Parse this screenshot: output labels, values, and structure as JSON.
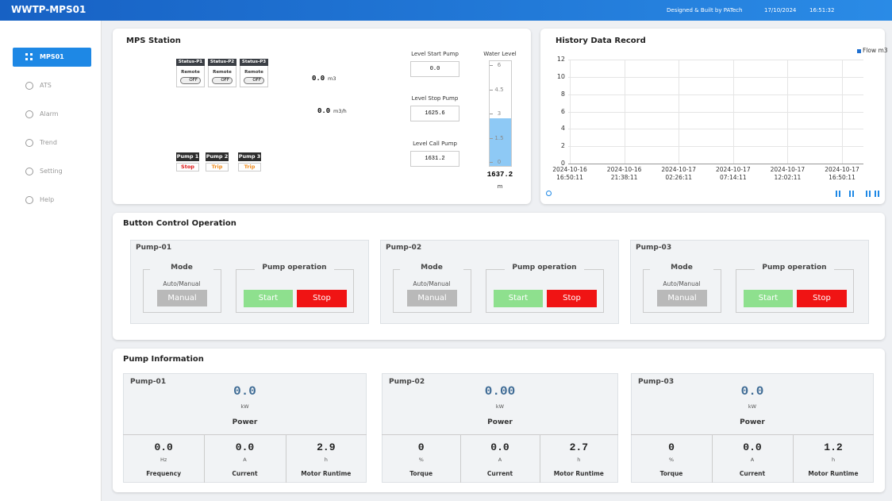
{
  "header": {
    "title": "WWTP-MPS01",
    "credit": "Designed & Built by PATech",
    "date": "17/10/2024",
    "time": "16:51:32"
  },
  "sidebar": {
    "items": [
      "MPS01",
      "ATS",
      "Alarm",
      "Trend",
      "Setting",
      "Help"
    ]
  },
  "mps_station": {
    "title": "MPS Station",
    "pumps": [
      {
        "status_title": "Status-P1",
        "mode": "Remote",
        "switch": "OFF",
        "label": "Pump 1",
        "state": "Stop"
      },
      {
        "status_title": "Status-P2",
        "mode": "Remote",
        "switch": "OFF",
        "label": "Pump 2",
        "state": "Trip"
      },
      {
        "status_title": "Status-P3",
        "mode": "Remote",
        "switch": "OFF",
        "label": "Pump 3",
        "state": "Trip"
      }
    ],
    "volume": {
      "value": "0.0",
      "unit": "m3"
    },
    "flow": {
      "value": "0.0",
      "unit": "m3/h"
    },
    "levels": [
      {
        "label": "Level Start Pump",
        "value": "0.0"
      },
      {
        "label": "Level Stop Pump",
        "value": "1625.6"
      },
      {
        "label": "Level Call Pump",
        "value": "1631.2"
      }
    ],
    "water_level": {
      "label": "Water Level",
      "ticks": [
        6,
        4.5,
        3,
        1.5,
        0
      ],
      "range": [
        0,
        6
      ],
      "level": 2.7,
      "value": "1637.2",
      "unit": "m"
    }
  },
  "history": {
    "title": "History Data Record",
    "legend": "Flow m3",
    "ylim": [
      0,
      12
    ],
    "yticks": [
      0,
      2,
      4,
      6,
      8,
      10,
      12
    ],
    "x_labels": [
      {
        "date": "2024-10-16",
        "time": "16:50:11"
      },
      {
        "date": "2024-10-16",
        "time": "21:38:11"
      },
      {
        "date": "2024-10-17",
        "time": "02:26:11"
      },
      {
        "date": "2024-10-17",
        "time": "07:14:11"
      },
      {
        "date": "2024-10-17",
        "time": "12:02:11"
      },
      {
        "date": "2024-10-17",
        "time": "16:50:11"
      }
    ]
  },
  "button_control": {
    "title": "Button Control Operation",
    "pumps": [
      {
        "name": "Pump-01",
        "mode_title": "Mode",
        "mode_caption": "Auto/Manual",
        "mode_button": "Manual",
        "operation_title": "Pump operation",
        "start": "Start",
        "stop": "Stop"
      },
      {
        "name": "Pump-02",
        "mode_title": "Mode",
        "mode_caption": "Auto/Manual",
        "mode_button": "Manual",
        "operation_title": "Pump operation",
        "start": "Start",
        "stop": "Stop"
      },
      {
        "name": "Pump-03",
        "mode_title": "Mode",
        "mode_caption": "Auto/Manual",
        "mode_button": "Manual",
        "operation_title": "Pump operation",
        "start": "Start",
        "stop": "Stop"
      }
    ]
  },
  "pump_info": {
    "title": "Pump Information",
    "pumps": [
      {
        "name": "Pump-01",
        "power": {
          "value": "0.0",
          "unit": "kW",
          "label": "Power"
        },
        "metrics": [
          {
            "value": "0.0",
            "unit": "Hz",
            "label": "Frequency"
          },
          {
            "value": "0.0",
            "unit": "A",
            "label": "Current"
          },
          {
            "value": "2.9",
            "unit": "h",
            "label": "Motor Runtime"
          }
        ]
      },
      {
        "name": "Pump-02",
        "power": {
          "value": "0.00",
          "unit": "kW",
          "label": "Power"
        },
        "metrics": [
          {
            "value": "0",
            "unit": "%",
            "label": "Torque"
          },
          {
            "value": "0.0",
            "unit": "A",
            "label": "Current"
          },
          {
            "value": "2.7",
            "unit": "h",
            "label": "Motor Runtime"
          }
        ]
      },
      {
        "name": "Pump-03",
        "power": {
          "value": "0.0",
          "unit": "kW",
          "label": "Power"
        },
        "metrics": [
          {
            "value": "0",
            "unit": "%",
            "label": "Torque"
          },
          {
            "value": "0.0",
            "unit": "A",
            "label": "Current"
          },
          {
            "value": "1.2",
            "unit": "h",
            "label": "Motor Runtime"
          }
        ]
      }
    ]
  }
}
